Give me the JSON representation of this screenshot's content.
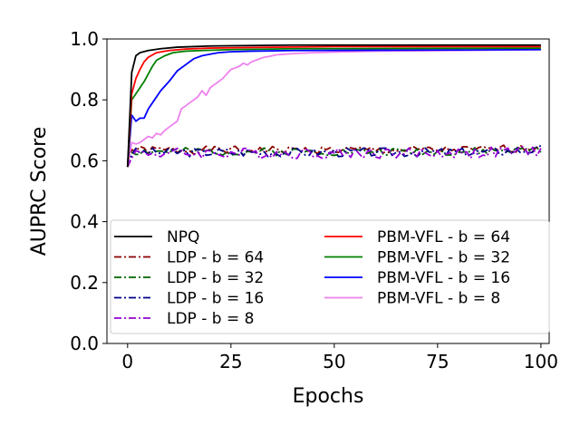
{
  "chart_data": {
    "type": "line",
    "title": "",
    "xlabel": "Epochs",
    "ylabel": "AUPRC Score",
    "xlim": [
      -5,
      102
    ],
    "ylim": [
      0.0,
      1.0
    ],
    "xticks": [
      0,
      25,
      50,
      75,
      100
    ],
    "yticks": [
      0.0,
      0.2,
      0.4,
      0.6,
      0.8,
      1.0
    ],
    "grid": false,
    "legend_position": "lower-center",
    "series": [
      {
        "name": "NPQ",
        "style": "solid",
        "color": "#000000",
        "x": [
          0,
          1,
          2,
          3,
          5,
          8,
          12,
          20,
          40,
          100
        ],
        "y": [
          0.58,
          0.89,
          0.945,
          0.955,
          0.962,
          0.968,
          0.973,
          0.977,
          0.98,
          0.98
        ]
      },
      {
        "name": "LDP - b = 64",
        "style": "dashdot",
        "color": "#8b0000",
        "base": 0.635,
        "amp": 0.013,
        "seed": 1
      },
      {
        "name": "LDP - b = 32",
        "style": "dashdot",
        "color": "#006400",
        "base": 0.63,
        "amp": 0.013,
        "seed": 2
      },
      {
        "name": "LDP - b = 16",
        "style": "dashdot",
        "color": "#00008b",
        "base": 0.628,
        "amp": 0.015,
        "seed": 3
      },
      {
        "name": "LDP - b = 8",
        "style": "dashdot",
        "color": "#9400d3",
        "base": 0.625,
        "amp": 0.018,
        "seed": 4
      },
      {
        "name": "PBM-VFL - b = 64",
        "style": "solid",
        "color": "#ff0000",
        "x": [
          0,
          1,
          2,
          3,
          4,
          5,
          7,
          10,
          14,
          20,
          30,
          50,
          100
        ],
        "y": [
          0.58,
          0.82,
          0.87,
          0.9,
          0.925,
          0.94,
          0.955,
          0.962,
          0.967,
          0.97,
          0.972,
          0.975,
          0.975
        ]
      },
      {
        "name": "PBM-VFL - b = 32",
        "style": "solid",
        "color": "#008000",
        "x": [
          0,
          1,
          2,
          3,
          4,
          5,
          6,
          7,
          9,
          11,
          14,
          18,
          25,
          40,
          100
        ],
        "y": [
          0.58,
          0.8,
          0.82,
          0.84,
          0.86,
          0.885,
          0.91,
          0.93,
          0.945,
          0.955,
          0.96,
          0.962,
          0.965,
          0.968,
          0.97
        ]
      },
      {
        "name": "PBM-VFL - b = 16",
        "style": "solid",
        "color": "#0000ff",
        "x": [
          0,
          1,
          2,
          3,
          4,
          5,
          6,
          8,
          10,
          12,
          14,
          16,
          18,
          20,
          22,
          25,
          30,
          40,
          100
        ],
        "y": [
          0.58,
          0.75,
          0.73,
          0.74,
          0.74,
          0.77,
          0.79,
          0.83,
          0.86,
          0.895,
          0.915,
          0.935,
          0.945,
          0.95,
          0.955,
          0.958,
          0.96,
          0.962,
          0.965
        ]
      },
      {
        "name": "PBM-VFL - b = 8",
        "style": "solid",
        "color": "#ee82ee",
        "x": [
          0,
          1,
          2,
          3,
          4,
          5,
          6,
          7,
          8,
          9,
          10,
          11,
          12,
          13,
          14,
          15,
          16,
          17,
          18,
          19,
          20,
          21,
          22,
          23,
          24,
          25,
          26,
          27,
          28,
          29,
          30,
          31,
          32,
          33,
          34,
          35,
          36,
          38,
          40,
          45,
          50,
          60,
          80,
          100
        ],
        "y": [
          0.58,
          0.66,
          0.655,
          0.66,
          0.67,
          0.68,
          0.675,
          0.69,
          0.685,
          0.7,
          0.71,
          0.72,
          0.73,
          0.77,
          0.78,
          0.79,
          0.8,
          0.81,
          0.83,
          0.815,
          0.84,
          0.85,
          0.86,
          0.87,
          0.885,
          0.9,
          0.905,
          0.91,
          0.92,
          0.915,
          0.925,
          0.93,
          0.935,
          0.94,
          0.942,
          0.945,
          0.948,
          0.95,
          0.952,
          0.955,
          0.957,
          0.96,
          0.962,
          0.965
        ]
      }
    ]
  }
}
